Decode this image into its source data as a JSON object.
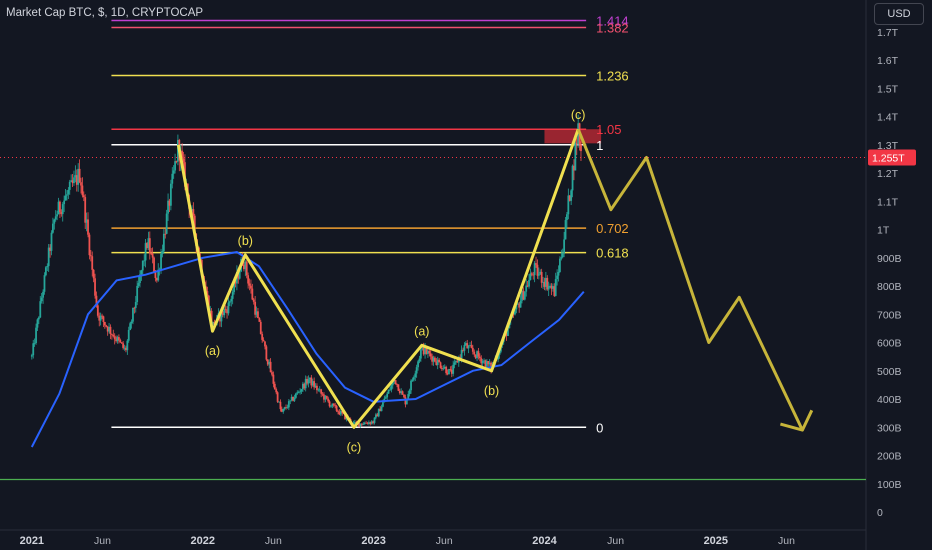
{
  "header": {
    "title": "Market Cap BTC, $, 1D, CRYPTOCAP",
    "currency_button": "USD"
  },
  "chart_data": {
    "type": "candlestick",
    "symbol": "Market Cap BTC",
    "unit": "$",
    "interval": "1D",
    "source": "CRYPTOCAP",
    "y_axis": {
      "ticks": [
        "1.7T",
        "1.6T",
        "1.5T",
        "1.4T",
        "1.3T",
        "1.2T",
        "1.1T",
        "1T",
        "900B",
        "800B",
        "700B",
        "600B",
        "500B",
        "400B",
        "300B",
        "200B",
        "100B",
        "0"
      ],
      "tick_values": [
        1700,
        1600,
        1500,
        1400,
        1300,
        1200,
        1100,
        1000,
        900,
        800,
        700,
        600,
        500,
        400,
        300,
        200,
        100,
        0
      ],
      "unit": "billion USD"
    },
    "x_axis": {
      "ticks": [
        "2021",
        "Jun",
        "2022",
        "Jun",
        "2023",
        "Jun",
        "2024",
        "Jun",
        "2025",
        "Jun"
      ],
      "tick_dates": [
        "2021-01-01",
        "2021-06-01",
        "2022-01-01",
        "2022-06-01",
        "2023-01-01",
        "2023-06-01",
        "2024-01-01",
        "2024-06-01",
        "2025-01-01",
        "2025-06-01"
      ]
    },
    "current_price": {
      "label": "1.255T",
      "value": 1255,
      "color": "#f23645"
    },
    "fib_levels": [
      {
        "label": "1.414",
        "value": 1740,
        "color": "#c040d0"
      },
      {
        "label": "1.382",
        "value": 1715,
        "color": "#f0506e"
      },
      {
        "label": "1.236",
        "value": 1545,
        "color": "#f0e050"
      },
      {
        "label": "1.05",
        "value": 1355,
        "color": "#f23645"
      },
      {
        "label": "1",
        "value": 1300,
        "color": "#ffffff"
      },
      {
        "label": "0.702",
        "value": 1005,
        "color": "#f0a030"
      },
      {
        "label": "0.618",
        "value": 918,
        "color": "#f0e050"
      },
      {
        "label": "0",
        "value": 300,
        "color": "#ffffff"
      }
    ],
    "support_line": {
      "value": 115,
      "color": "#4caf50"
    },
    "resistance_zone": {
      "from_date": "2024-01-01",
      "to_date": "2024-05-01",
      "low": 1305,
      "high": 1355,
      "color": "#b22833"
    },
    "wave_path": {
      "color": "#f0e050",
      "points": [
        {
          "date": "2021-11-10",
          "value": 1300
        },
        {
          "date": "2022-01-22",
          "value": 640
        },
        {
          "date": "2022-04-02",
          "value": 910
        },
        {
          "date": "2022-11-20",
          "value": 300
        },
        {
          "date": "2023-04-14",
          "value": 590
        },
        {
          "date": "2023-09-10",
          "value": 500
        },
        {
          "date": "2024-03-13",
          "value": 1355
        }
      ]
    },
    "projection_path": {
      "color": "#c7b53a",
      "points": [
        {
          "date": "2024-03-13",
          "value": 1355
        },
        {
          "date": "2024-05-22",
          "value": 1070
        },
        {
          "date": "2024-08-06",
          "value": 1255
        },
        {
          "date": "2024-12-17",
          "value": 600
        },
        {
          "date": "2025-02-20",
          "value": 760
        },
        {
          "date": "2025-07-05",
          "value": 290
        }
      ],
      "arrow_head_to": {
        "date": "2025-07-25",
        "value": 360
      }
    },
    "wave_labels": [
      {
        "text": "(a)",
        "date": "2022-01-22",
        "value": 640,
        "position": "below"
      },
      {
        "text": "(b)",
        "date": "2022-04-02",
        "value": 910,
        "position": "above"
      },
      {
        "text": "(c)",
        "date": "2022-11-20",
        "value": 300,
        "position": "below"
      },
      {
        "text": "(a)",
        "date": "2023-04-14",
        "value": 590,
        "position": "above"
      },
      {
        "text": "(b)",
        "date": "2023-09-10",
        "value": 500,
        "position": "below"
      },
      {
        "text": "(c)",
        "date": "2024-03-13",
        "value": 1355,
        "position": "above"
      }
    ],
    "price_series": {
      "color_up": "#26a69a",
      "color_down": "#ef5350",
      "anchors": [
        {
          "date": "2021-01-01",
          "value": 550
        },
        {
          "date": "2021-02-20",
          "value": 1050
        },
        {
          "date": "2021-04-14",
          "value": 1200
        },
        {
          "date": "2021-05-22",
          "value": 700
        },
        {
          "date": "2021-07-20",
          "value": 570
        },
        {
          "date": "2021-09-05",
          "value": 960
        },
        {
          "date": "2021-09-25",
          "value": 820
        },
        {
          "date": "2021-11-10",
          "value": 1300
        },
        {
          "date": "2022-01-22",
          "value": 660
        },
        {
          "date": "2022-02-25",
          "value": 730
        },
        {
          "date": "2022-03-28",
          "value": 900
        },
        {
          "date": "2022-05-10",
          "value": 600
        },
        {
          "date": "2022-06-18",
          "value": 350
        },
        {
          "date": "2022-08-15",
          "value": 470
        },
        {
          "date": "2022-10-01",
          "value": 380
        },
        {
          "date": "2022-11-20",
          "value": 310
        },
        {
          "date": "2023-01-01",
          "value": 320
        },
        {
          "date": "2023-02-15",
          "value": 470
        },
        {
          "date": "2023-03-10",
          "value": 390
        },
        {
          "date": "2023-04-14",
          "value": 580
        },
        {
          "date": "2023-06-15",
          "value": 490
        },
        {
          "date": "2023-07-15",
          "value": 590
        },
        {
          "date": "2023-09-10",
          "value": 510
        },
        {
          "date": "2023-10-25",
          "value": 690
        },
        {
          "date": "2023-12-10",
          "value": 860
        },
        {
          "date": "2024-01-22",
          "value": 780
        },
        {
          "date": "2024-02-10",
          "value": 950
        },
        {
          "date": "2024-03-13",
          "value": 1360
        },
        {
          "date": "2024-03-20",
          "value": 1255
        }
      ]
    },
    "moving_average": {
      "color": "#2962ff",
      "anchors": [
        {
          "date": "2021-01-01",
          "value": 230
        },
        {
          "date": "2021-03-01",
          "value": 420
        },
        {
          "date": "2021-05-01",
          "value": 700
        },
        {
          "date": "2021-07-01",
          "value": 820
        },
        {
          "date": "2021-09-01",
          "value": 840
        },
        {
          "date": "2021-11-01",
          "value": 870
        },
        {
          "date": "2022-01-01",
          "value": 900
        },
        {
          "date": "2022-03-15",
          "value": 920
        },
        {
          "date": "2022-05-01",
          "value": 870
        },
        {
          "date": "2022-07-01",
          "value": 720
        },
        {
          "date": "2022-09-01",
          "value": 560
        },
        {
          "date": "2022-11-01",
          "value": 440
        },
        {
          "date": "2023-01-01",
          "value": 390
        },
        {
          "date": "2023-04-01",
          "value": 400
        },
        {
          "date": "2023-06-01",
          "value": 450
        },
        {
          "date": "2023-08-01",
          "value": 500
        },
        {
          "date": "2023-10-01",
          "value": 520
        },
        {
          "date": "2023-12-01",
          "value": 600
        },
        {
          "date": "2024-02-01",
          "value": 680
        },
        {
          "date": "2024-03-25",
          "value": 780
        }
      ]
    }
  }
}
